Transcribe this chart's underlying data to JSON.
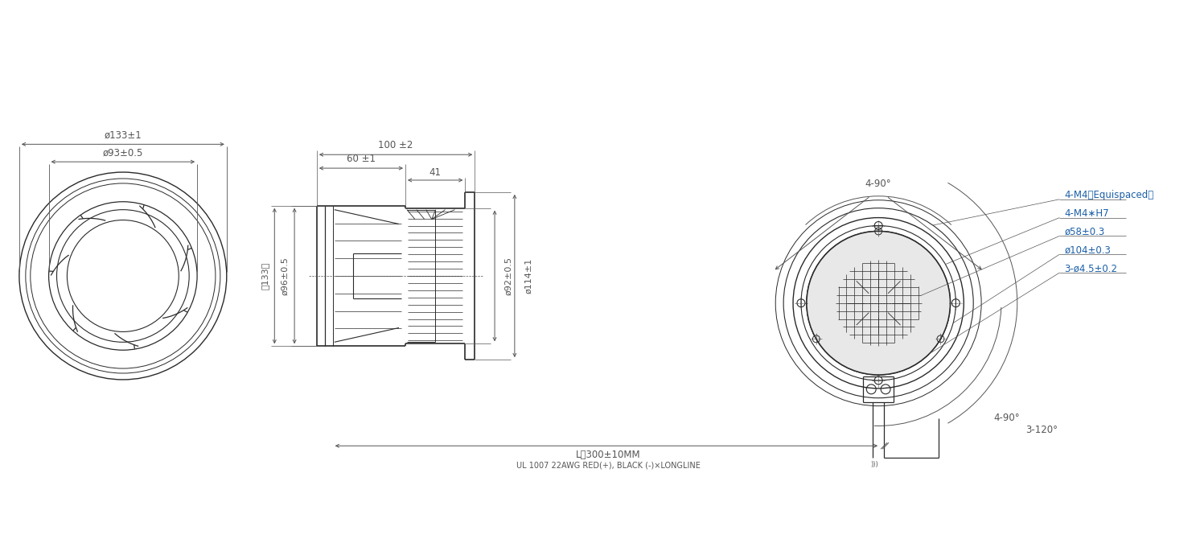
{
  "bg_color": "#ffffff",
  "line_color": "#2a2a2a",
  "dim_color": "#555555",
  "blue_color": "#1a5fa8",
  "fig_width": 14.92,
  "fig_height": 6.85,
  "dims": {
    "d133": "ø133±1",
    "d93": "ø93±0.5",
    "d96": "ø96±0.5",
    "d92": "ø92±0.5",
    "d114": "ø114±1",
    "len100": "100 ±2",
    "len60": "60 ±1",
    "len41": "41",
    "len133": "（133）",
    "d58": "ø58±0.3",
    "d104": "ø104±0.3",
    "holes": "3-ø4.5±0.2",
    "m4_eq": "4-M4（Equispaced）",
    "m4_h7": "4-M4∗H7",
    "ang_4_90_top": "4-90°",
    "ang_4_90_bot": "4-90°",
    "ang_3_120": "3-120°",
    "wire_len": "L：300±10MM",
    "wire_spec": "UL 1007 22AWG RED(+), BLACK (-)×LONGLINE"
  }
}
